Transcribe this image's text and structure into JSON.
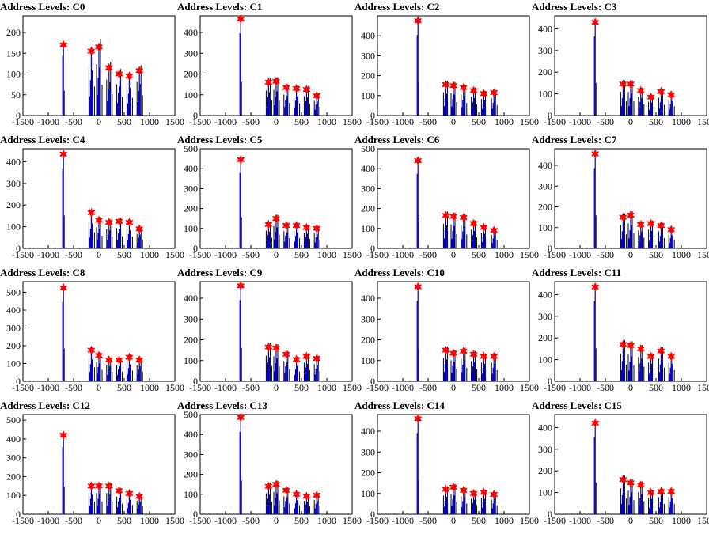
{
  "chart_data": [
    {
      "type": "bar",
      "title": "Address Levels: C0",
      "xlim": [
        -1500,
        1500
      ],
      "ylim": [
        0,
        240
      ],
      "yticks": [
        0,
        50,
        100,
        150,
        200
      ],
      "xticks": [
        -1500,
        -1000,
        -500,
        0,
        500,
        1000,
        1500
      ],
      "peak_x": [
        -700,
        -150,
        0,
        200,
        400,
        600,
        800
      ],
      "peak_y": [
        170,
        155,
        165,
        115,
        100,
        95,
        108
      ]
    },
    {
      "type": "bar",
      "title": "Address Levels: C1",
      "xlim": [
        -1500,
        1500
      ],
      "ylim": [
        0,
        480
      ],
      "yticks": [
        0,
        100,
        200,
        300,
        400
      ],
      "xticks": [
        -1500,
        -1000,
        -500,
        0,
        500,
        1000,
        1500
      ],
      "peak_x": [
        -700,
        -150,
        0,
        200,
        400,
        600,
        800
      ],
      "peak_y": [
        465,
        160,
        165,
        135,
        130,
        125,
        95
      ]
    },
    {
      "type": "bar",
      "title": "Address Levels: C2",
      "xlim": [
        -1500,
        1500
      ],
      "ylim": [
        0,
        500
      ],
      "yticks": [
        0,
        100,
        200,
        300,
        400
      ],
      "xticks": [
        -1500,
        -1000,
        -500,
        0,
        500,
        1000,
        1500
      ],
      "peak_x": [
        -700,
        -150,
        0,
        200,
        400,
        600,
        800
      ],
      "peak_y": [
        475,
        155,
        150,
        140,
        125,
        110,
        115
      ]
    },
    {
      "type": "bar",
      "title": "Address Levels: C3",
      "xlim": [
        -1500,
        1500
      ],
      "ylim": [
        0,
        460
      ],
      "yticks": [
        0,
        100,
        200,
        300,
        400
      ],
      "xticks": [
        -1500,
        -1000,
        -500,
        0,
        500,
        1000,
        1500
      ],
      "peak_x": [
        -700,
        -150,
        0,
        200,
        400,
        600,
        800
      ],
      "peak_y": [
        430,
        145,
        145,
        115,
        85,
        110,
        95
      ]
    },
    {
      "type": "bar",
      "title": "Address Levels: C4",
      "xlim": [
        -1500,
        1500
      ],
      "ylim": [
        0,
        460
      ],
      "yticks": [
        0,
        100,
        200,
        300,
        400
      ],
      "xticks": [
        -1500,
        -1000,
        -500,
        0,
        500,
        1000,
        1500
      ],
      "peak_x": [
        -700,
        -150,
        0,
        200,
        400,
        600,
        800
      ],
      "peak_y": [
        435,
        165,
        130,
        120,
        125,
        120,
        90
      ]
    },
    {
      "type": "bar",
      "title": "Address Levels: C5",
      "xlim": [
        -1500,
        1500
      ],
      "ylim": [
        0,
        500
      ],
      "yticks": [
        0,
        100,
        200,
        300,
        400,
        500
      ],
      "xticks": [
        -1500,
        -1000,
        -500,
        0,
        500,
        1000,
        1500
      ],
      "peak_x": [
        -700,
        -150,
        0,
        200,
        400,
        600,
        800
      ],
      "peak_y": [
        445,
        120,
        150,
        115,
        115,
        105,
        100
      ]
    },
    {
      "type": "bar",
      "title": "Address Levels: C6",
      "xlim": [
        -1500,
        1500
      ],
      "ylim": [
        0,
        500
      ],
      "yticks": [
        0,
        100,
        200,
        300,
        400,
        500
      ],
      "xticks": [
        -1500,
        -1000,
        -500,
        0,
        500,
        1000,
        1500
      ],
      "peak_x": [
        -700,
        -150,
        0,
        200,
        400,
        600,
        800
      ],
      "peak_y": [
        440,
        165,
        160,
        155,
        125,
        105,
        90
      ]
    },
    {
      "type": "bar",
      "title": "Address Levels: C7",
      "xlim": [
        -1500,
        1500
      ],
      "ylim": [
        0,
        480
      ],
      "yticks": [
        0,
        100,
        200,
        300,
        400
      ],
      "xticks": [
        -1500,
        -1000,
        -500,
        0,
        500,
        1000,
        1500
      ],
      "peak_x": [
        -700,
        -150,
        0,
        200,
        400,
        600,
        800
      ],
      "peak_y": [
        455,
        150,
        160,
        115,
        120,
        110,
        90
      ]
    },
    {
      "type": "bar",
      "title": "Address Levels: C8",
      "xlim": [
        -1500,
        1500
      ],
      "ylim": [
        0,
        560
      ],
      "yticks": [
        0,
        100,
        200,
        300,
        400,
        500
      ],
      "xticks": [
        -1500,
        -1000,
        -500,
        0,
        500,
        1000,
        1500
      ],
      "peak_x": [
        -700,
        -150,
        0,
        200,
        400,
        600,
        800
      ],
      "peak_y": [
        525,
        175,
        145,
        120,
        120,
        135,
        120
      ]
    },
    {
      "type": "bar",
      "title": "Address Levels: C9",
      "xlim": [
        -1500,
        1500
      ],
      "ylim": [
        0,
        480
      ],
      "yticks": [
        0,
        100,
        200,
        300,
        400
      ],
      "xticks": [
        -1500,
        -1000,
        -500,
        0,
        500,
        1000,
        1500
      ],
      "peak_x": [
        -700,
        -150,
        0,
        200,
        400,
        600,
        800
      ],
      "peak_y": [
        460,
        165,
        160,
        130,
        105,
        120,
        110
      ]
    },
    {
      "type": "bar",
      "title": "Address Levels: C10",
      "xlim": [
        -1500,
        1500
      ],
      "ylim": [
        0,
        480
      ],
      "yticks": [
        0,
        100,
        200,
        300,
        400
      ],
      "xticks": [
        -1500,
        -1000,
        -500,
        0,
        500,
        1000,
        1500
      ],
      "peak_x": [
        -700,
        -150,
        0,
        200,
        400,
        600,
        800
      ],
      "peak_y": [
        455,
        150,
        135,
        145,
        130,
        120,
        120
      ]
    },
    {
      "type": "bar",
      "title": "Address Levels: C11",
      "xlim": [
        -1500,
        1500
      ],
      "ylim": [
        0,
        460
      ],
      "yticks": [
        0,
        100,
        200,
        300,
        400
      ],
      "xticks": [
        -1500,
        -1000,
        -500,
        0,
        500,
        1000,
        1500
      ],
      "peak_x": [
        -700,
        -150,
        0,
        200,
        400,
        600,
        800
      ],
      "peak_y": [
        435,
        170,
        165,
        150,
        115,
        140,
        115
      ]
    },
    {
      "type": "bar",
      "title": "Address Levels: C12",
      "xlim": [
        -1500,
        1500
      ],
      "ylim": [
        0,
        530
      ],
      "yticks": [
        0,
        100,
        200,
        300,
        400,
        500
      ],
      "xticks": [
        -1500,
        -1000,
        -500,
        0,
        500,
        1000,
        1500
      ],
      "peak_x": [
        -700,
        -150,
        0,
        200,
        400,
        600,
        800
      ],
      "peak_y": [
        420,
        150,
        150,
        150,
        125,
        110,
        95
      ]
    },
    {
      "type": "bar",
      "title": "Address Levels: C13",
      "xlim": [
        -1500,
        1500
      ],
      "ylim": [
        0,
        500
      ],
      "yticks": [
        0,
        100,
        200,
        300,
        400,
        500
      ],
      "xticks": [
        -1500,
        -1000,
        -500,
        0,
        500,
        1000,
        1500
      ],
      "peak_x": [
        -700,
        -150,
        0,
        200,
        400,
        600,
        800
      ],
      "peak_y": [
        485,
        140,
        150,
        120,
        100,
        90,
        95
      ]
    },
    {
      "type": "bar",
      "title": "Address Levels: C14",
      "xlim": [
        -1500,
        1500
      ],
      "ylim": [
        0,
        480
      ],
      "yticks": [
        0,
        100,
        200,
        300,
        400
      ],
      "xticks": [
        -1500,
        -1000,
        -500,
        0,
        500,
        1000,
        1500
      ],
      "peak_x": [
        -700,
        -150,
        0,
        200,
        400,
        600,
        800
      ],
      "peak_y": [
        460,
        120,
        130,
        115,
        100,
        105,
        95
      ]
    },
    {
      "type": "bar",
      "title": "Address Levels: C15",
      "xlim": [
        -1500,
        1500
      ],
      "ylim": [
        0,
        460
      ],
      "yticks": [
        0,
        100,
        200,
        300,
        400
      ],
      "xticks": [
        -1500,
        -1000,
        -500,
        0,
        500,
        1000,
        1500
      ],
      "peak_x": [
        -700,
        -150,
        0,
        200,
        400,
        600,
        800
      ],
      "peak_y": [
        420,
        160,
        145,
        135,
        100,
        105,
        105
      ]
    }
  ],
  "colors": {
    "histogram": "#0000cc",
    "background_bars": "#000000",
    "marker": "#ff0000"
  }
}
